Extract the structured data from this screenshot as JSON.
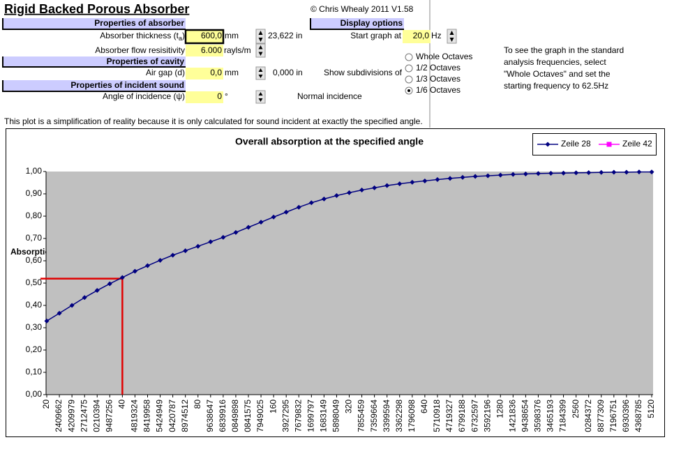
{
  "header": {
    "title": "Rigid Backed Porous Absorber",
    "copyright": "© Chris Whealy 2011  V1.58"
  },
  "sections": {
    "absorber": "Properties of absorber",
    "display": "Display options",
    "cavity": "Properties of cavity",
    "incident": "Properties of incident sound"
  },
  "fields": [
    {
      "label": "Absorber thickness (t",
      "subscript": "a",
      "label_end": ")",
      "value": "600,0",
      "unit": "mm",
      "converted": "23,622 in"
    },
    {
      "label": "Absorber flow resisitivity",
      "value": "6.000",
      "unit": "rayls/m"
    },
    {
      "label": "Air gap (d)",
      "value": "0,0",
      "unit": "mm",
      "converted": "0,000 in"
    },
    {
      "label": "Angle of incidence (ψ)",
      "value": "0",
      "unit": "°",
      "note": "Normal incidence"
    }
  ],
  "display": {
    "start_label": "Start graph at",
    "start_value": "20,0",
    "start_unit": "Hz",
    "subdivisions_label": "Show subdivisions of",
    "options": [
      "Whole Octaves",
      "1/2 Octaves",
      "1/3 Octaves",
      "1/6 Octaves"
    ],
    "selected": "1/6 Octaves"
  },
  "hint": [
    "To see the graph in the standard",
    "analysis frequencies, select",
    "\"Whole Octaves\" and set the",
    "starting frequency to 62.5Hz"
  ],
  "disclaimer": "This plot is a simplification of reality because it is only calculated for sound incident at exactly the specified angle.",
  "chart_data": {
    "type": "line",
    "title": "Overall absorption at the specified angle",
    "y_label": "Absorption",
    "categories": [
      "20",
      "2409662",
      "4209979",
      "2712475",
      "0210394",
      "9487256",
      "40",
      "4819324",
      "8419958",
      "5424949",
      "0420787",
      "8974512",
      "80",
      "9638647",
      "6839916",
      "0849898",
      "0841575",
      "7949025",
      "160",
      "3927295",
      "7679832",
      "1699797",
      "1683149",
      "5898049",
      "320",
      "7855459",
      "7359664",
      "3399594",
      "3362298",
      "1796098",
      "640",
      "5710918",
      "4719327",
      "6799188",
      "6732597",
      "3592196",
      "1280",
      "1421836",
      "9438654",
      "3598376",
      "3465193",
      "7184399",
      "2560",
      "0284372",
      "8877309",
      "7196751",
      "6930396",
      "4368785",
      "5120"
    ],
    "series": [
      {
        "name": "Zeile 28",
        "color": "#000080",
        "marker": "diamond",
        "values": [
          0.33,
          0.365,
          0.4,
          0.435,
          0.467,
          0.497,
          0.525,
          0.553,
          0.578,
          0.602,
          0.625,
          0.645,
          0.665,
          0.685,
          0.705,
          0.727,
          0.75,
          0.773,
          0.796,
          0.818,
          0.84,
          0.86,
          0.877,
          0.892,
          0.905,
          0.917,
          0.927,
          0.937,
          0.945,
          0.952,
          0.958,
          0.964,
          0.969,
          0.974,
          0.978,
          0.981,
          0.984,
          0.987,
          0.989,
          0.991,
          0.992,
          0.993,
          0.994,
          0.995,
          0.996,
          0.997,
          0.997,
          0.998,
          0.998
        ]
      },
      {
        "name": "Zeile 42",
        "color": "#ff00ff",
        "marker": "square",
        "values": [
          null,
          null,
          null,
          null,
          null,
          null,
          null,
          null,
          null,
          null,
          null,
          null,
          null,
          null,
          null,
          null,
          null,
          null,
          null,
          null,
          null,
          null,
          null,
          null,
          null,
          null,
          null,
          null,
          null,
          null,
          null,
          null,
          null,
          null,
          null,
          null,
          null,
          null,
          null,
          null,
          null,
          null,
          null,
          null,
          null,
          null,
          null,
          null,
          null
        ]
      }
    ],
    "reference": {
      "value": 0.52,
      "category": "40",
      "color": "#e00000"
    },
    "ylim": [
      0,
      1
    ],
    "yticks": [
      {
        "value": 0,
        "label": "0,00"
      },
      {
        "value": 0.1,
        "label": "0,10"
      },
      {
        "value": 0.2,
        "label": "0,20"
      },
      {
        "value": 0.3,
        "label": "0,30"
      },
      {
        "value": 0.4,
        "label": "0,40"
      },
      {
        "value": 0.5,
        "label": "0,50"
      },
      {
        "value": 0.6,
        "label": "0,60"
      },
      {
        "value": 0.7,
        "label": "0,70"
      },
      {
        "value": 0.8,
        "label": "0,80"
      },
      {
        "value": 0.9,
        "label": "0,90"
      },
      {
        "value": 1,
        "label": "1,00"
      }
    ],
    "grid": false,
    "plot_background": "#c0c0c0",
    "legend": "top-right"
  }
}
